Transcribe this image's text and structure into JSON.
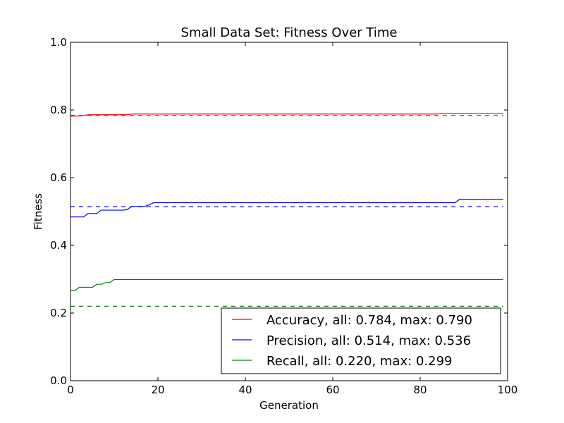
{
  "chart_data": {
    "type": "line",
    "title": "Small Data Set: Fitness Over Time",
    "xlabel": "Generation",
    "ylabel": "Fitness",
    "xlim": [
      0,
      100
    ],
    "ylim": [
      0.0,
      1.0
    ],
    "xticks": [
      0,
      20,
      40,
      60,
      80,
      100
    ],
    "xtick_labels": [
      "0",
      "20",
      "40",
      "60",
      "80",
      "100"
    ],
    "yticks": [
      0.0,
      0.2,
      0.4,
      0.6,
      0.8,
      1.0
    ],
    "ytick_labels": [
      "0.0",
      "0.2",
      "0.4",
      "0.6",
      "0.8",
      "1.0"
    ],
    "grid": false,
    "legend_position": "lower-right",
    "series": [
      {
        "name": "Accuracy, all: 0.784, max: 0.790",
        "color": "#ff0000",
        "x": [
          0,
          2,
          3,
          4,
          13,
          14,
          84,
          85,
          99
        ],
        "values": [
          0.782,
          0.782,
          0.784,
          0.786,
          0.786,
          0.788,
          0.788,
          0.79,
          0.79
        ],
        "reference": 0.784
      },
      {
        "name": "Precision, all: 0.514, max: 0.536",
        "color": "#0000ff",
        "x": [
          0,
          3,
          4,
          6,
          7,
          12,
          13,
          14,
          17,
          18,
          19,
          88,
          89,
          99
        ],
        "values": [
          0.484,
          0.484,
          0.494,
          0.494,
          0.504,
          0.504,
          0.506,
          0.515,
          0.515,
          0.52,
          0.526,
          0.526,
          0.536,
          0.536
        ],
        "reference": 0.514
      },
      {
        "name": "Recall, all: 0.220, max: 0.299",
        "color": "#008000",
        "x": [
          0,
          1,
          2,
          5,
          6,
          7,
          8,
          9,
          10,
          99
        ],
        "values": [
          0.266,
          0.266,
          0.276,
          0.276,
          0.285,
          0.285,
          0.29,
          0.29,
          0.299,
          0.299
        ],
        "reference": 0.22
      }
    ]
  }
}
